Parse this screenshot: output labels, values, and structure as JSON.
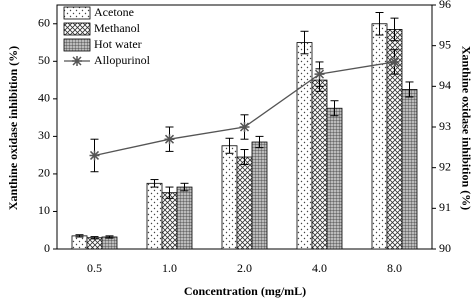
{
  "chart_data": {
    "type": "bar",
    "x_label": "Concentration (mg/mL)",
    "y_label": "Xanthine oxidase inhibition (%)",
    "y2_label": "Xanthine oxidase inhibition (%)",
    "categories": [
      "0.5",
      "1.0",
      "2.0",
      "4.0",
      "8.0"
    ],
    "ylim": [
      0,
      65
    ],
    "yticks": [
      0,
      10,
      20,
      30,
      40,
      50,
      60
    ],
    "y2lim": [
      90,
      96
    ],
    "y2ticks": [
      90,
      91,
      92,
      93,
      94,
      95,
      96
    ],
    "legend": "upper left",
    "series": [
      {
        "name": "Acetone",
        "type": "bar",
        "values": [
          3.5,
          17.5,
          27.5,
          55,
          60
        ],
        "errors": [
          0.3,
          1,
          2,
          3,
          3
        ]
      },
      {
        "name": "Methanol",
        "type": "bar",
        "values": [
          3,
          15,
          24.5,
          45,
          58.5
        ],
        "errors": [
          0.3,
          1.5,
          2,
          3,
          3
        ]
      },
      {
        "name": "Hot water",
        "type": "bar",
        "values": [
          3.2,
          16.5,
          28.5,
          37.5,
          42.5
        ],
        "errors": [
          0.3,
          1,
          1.5,
          2,
          2
        ]
      },
      {
        "name": "Allopurinol",
        "type": "line",
        "axis": "y2",
        "color": "#555555",
        "values": [
          92.3,
          92.7,
          93.0,
          94.3,
          94.6
        ],
        "errors": [
          0.4,
          0.3,
          0.3,
          0.3,
          0.3
        ]
      }
    ]
  }
}
